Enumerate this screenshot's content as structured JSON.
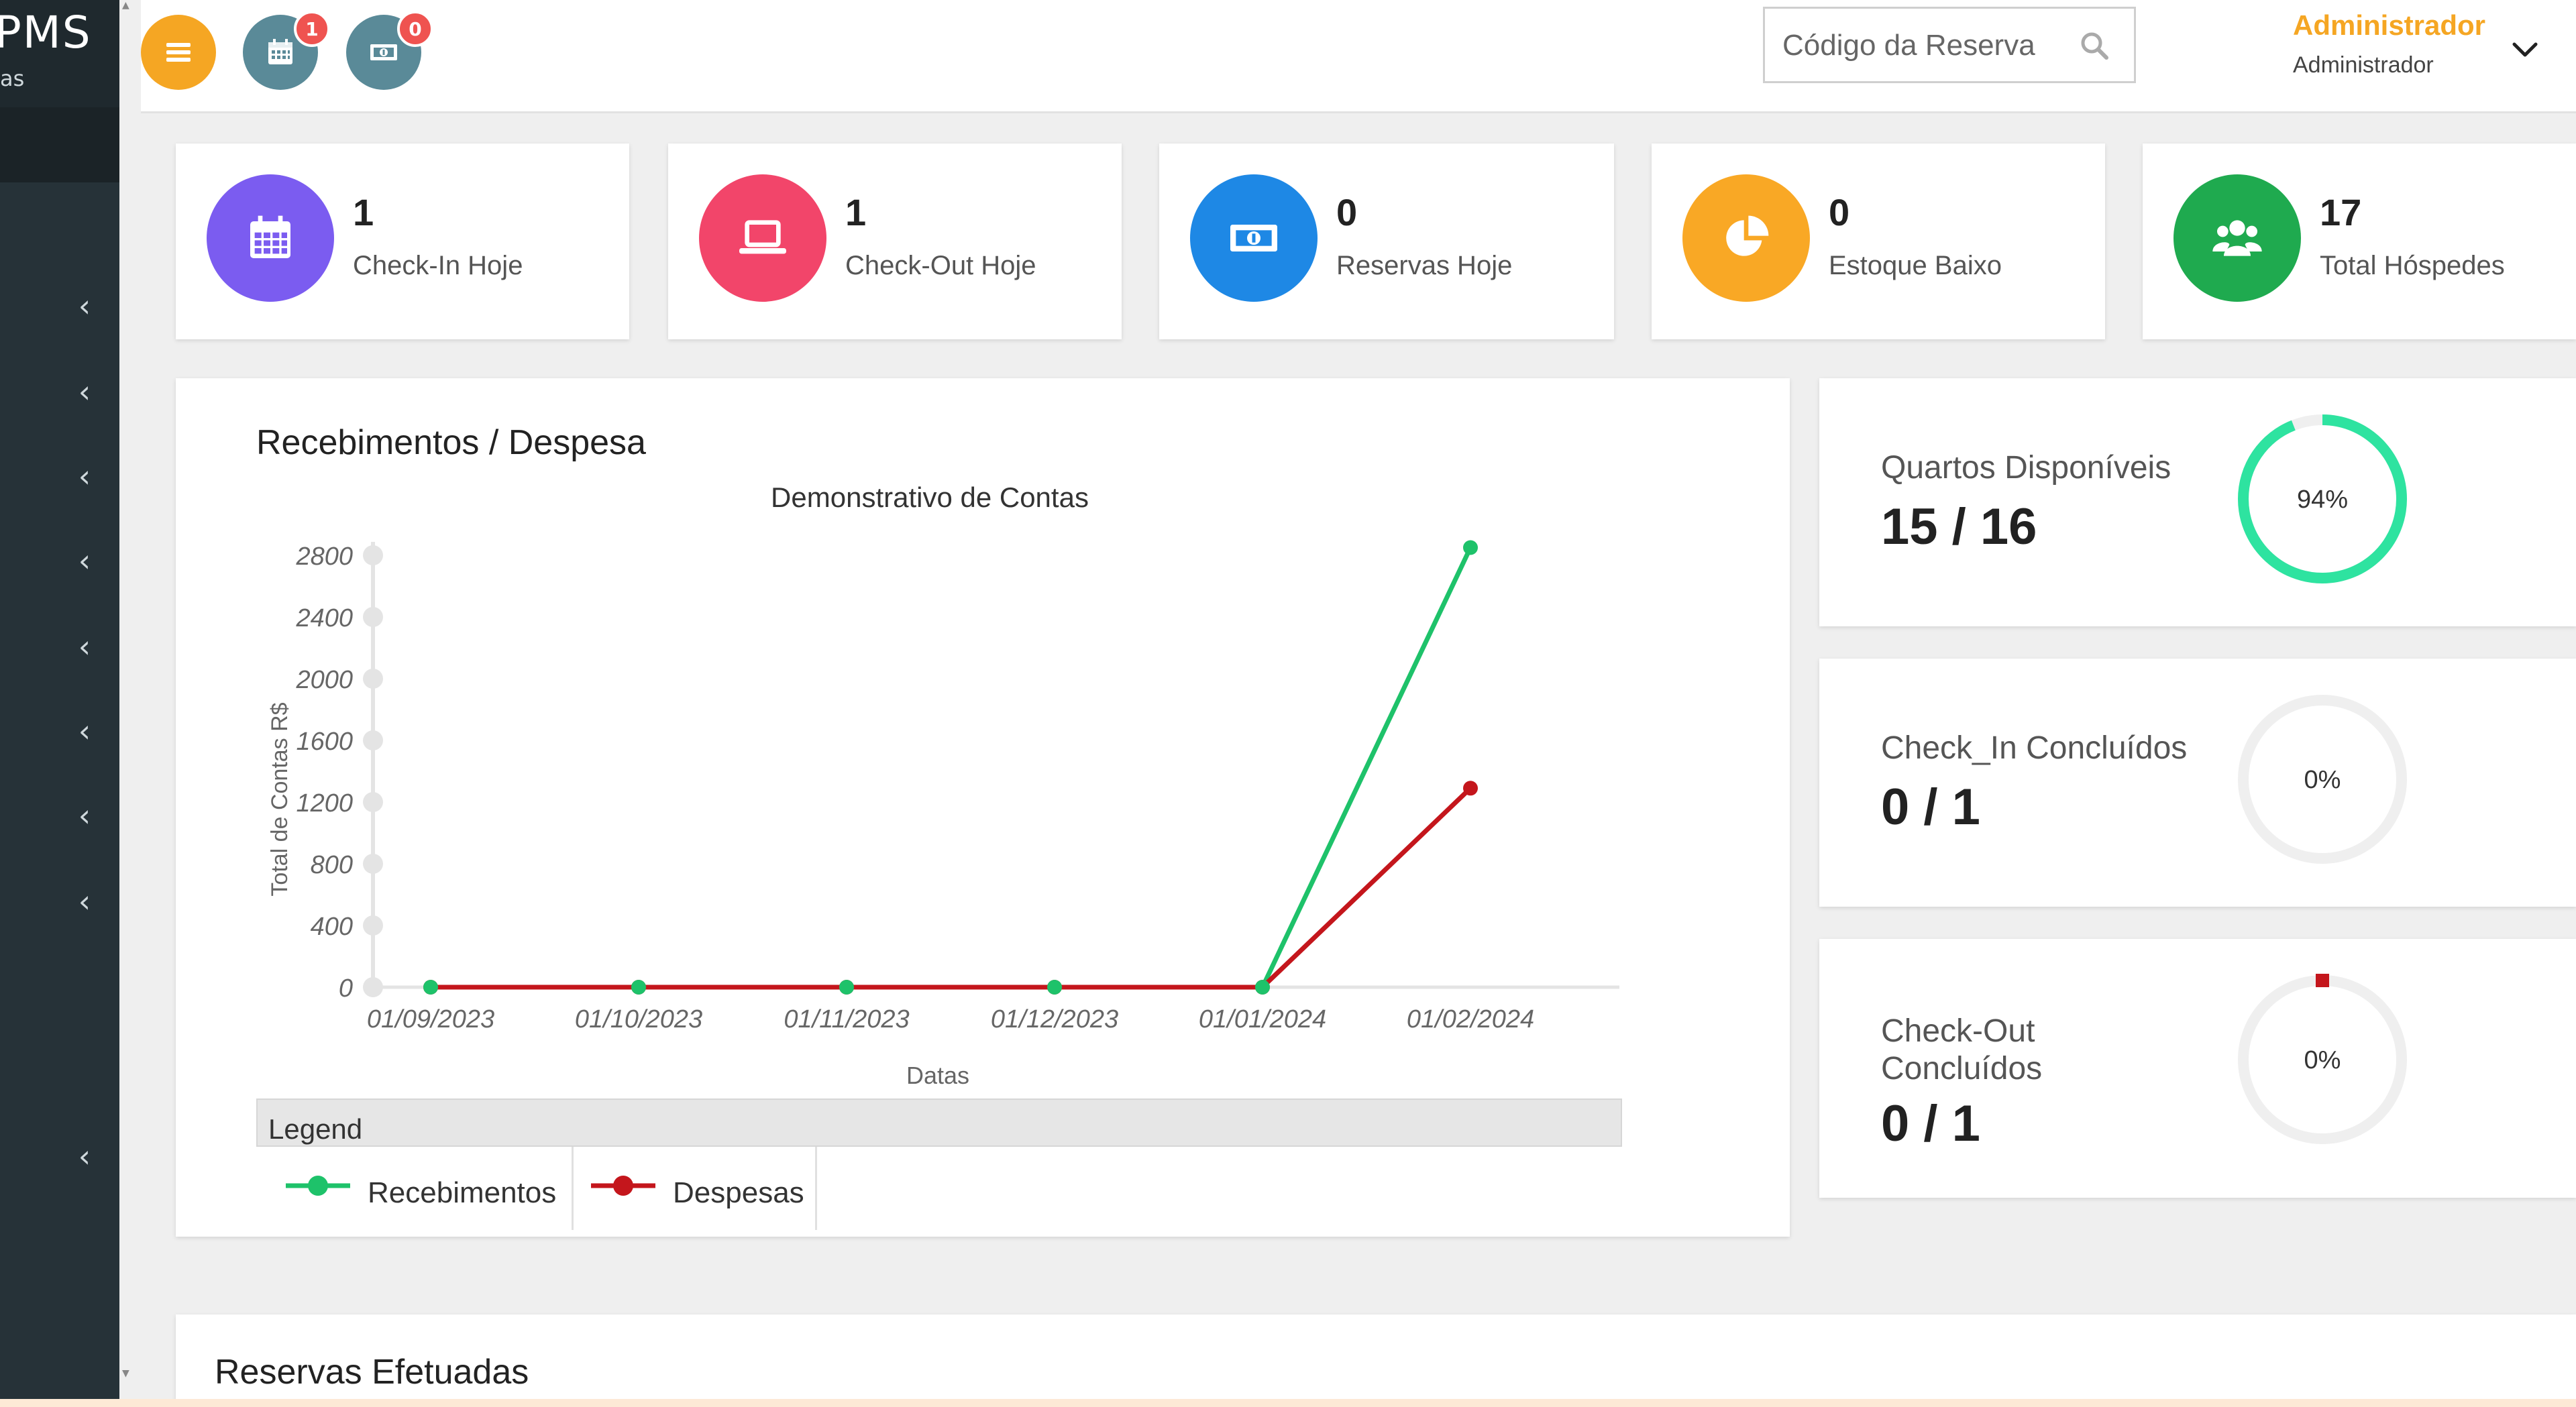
{
  "brand": {
    "name": "PMS",
    "subtitle": "as"
  },
  "topbar": {
    "menu_icon": "bars-icon",
    "calendar_badge": "1",
    "money_badge": "0",
    "search_placeholder": "Código da Reserva",
    "user_name": "Administrador",
    "user_role": "Administrador"
  },
  "colors": {
    "accent_orange": "#f5a623",
    "calendar_btn": "#5a8a98",
    "stat_purple": "#7b5cf0",
    "stat_pink": "#f2456a",
    "stat_blue": "#1e88e5",
    "stat_yellow": "#f9a825",
    "stat_green": "#1faa4f",
    "series_green": "#1ec26a",
    "series_red": "#c4161c",
    "ring_green": "#2ee3a0"
  },
  "stats": [
    {
      "value": "1",
      "label": "Check-In Hoje",
      "icon": "calendar-icon"
    },
    {
      "value": "1",
      "label": "Check-Out Hoje",
      "icon": "laptop-icon"
    },
    {
      "value": "0",
      "label": "Reservas Hoje",
      "icon": "money-icon"
    },
    {
      "value": "0",
      "label": "Estoque Baixo",
      "icon": "pie-chart-icon"
    },
    {
      "value": "17",
      "label": "Total Hóspedes",
      "icon": "users-icon"
    }
  ],
  "chart_panel": {
    "title": "Recebimentos / Despesa",
    "legend_title": "Legend"
  },
  "chart_data": {
    "type": "line",
    "title": "Demonstrativo de Contas",
    "xlabel": "Datas",
    "ylabel": "Total de Contas R$",
    "categories": [
      "01/09/2023",
      "01/10/2023",
      "01/11/2023",
      "01/12/2023",
      "01/01/2024",
      "01/02/2024"
    ],
    "ylim": [
      0,
      2800
    ],
    "yticks": [
      "0",
      "400",
      "800",
      "1200",
      "1600",
      "2000",
      "2400",
      "2800"
    ],
    "series": [
      {
        "name": "Recebimentos",
        "color": "#1ec26a",
        "values": [
          0,
          0,
          0,
          0,
          0,
          2850
        ]
      },
      {
        "name": "Despesas",
        "color": "#c4161c",
        "values": [
          0,
          0,
          0,
          0,
          0,
          1290
        ]
      }
    ],
    "legend": "bottom"
  },
  "progress": [
    {
      "label": "Quartos Disponíveis",
      "value": "15 / 16",
      "percent_text": "94%",
      "fraction": 0.94
    },
    {
      "label": "Check_In Concluídos",
      "value": "0 / 1",
      "percent_text": "0%",
      "fraction": 0
    },
    {
      "label": "Check-Out Concluídos",
      "value": "0 / 1",
      "percent_text": "0%",
      "fraction": 0
    }
  ],
  "reservas": {
    "title": "Reservas Efetuadas"
  }
}
